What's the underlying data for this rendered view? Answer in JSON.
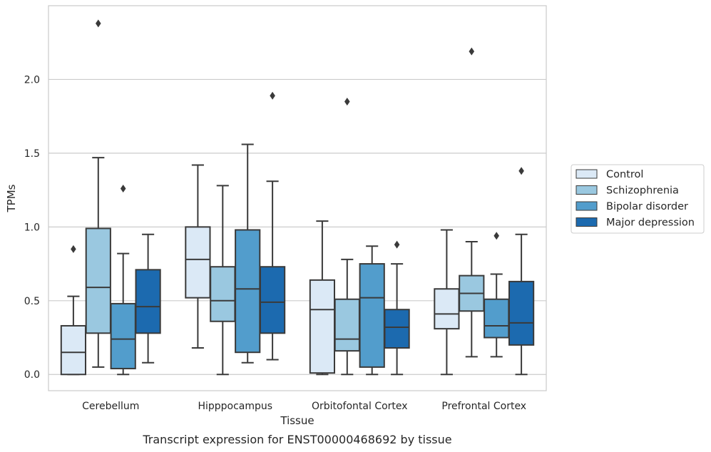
{
  "caption": "Transcript expression for ENST00000468692 by tissue",
  "chart_data": {
    "type": "boxplot",
    "xlabel": "Tissue",
    "ylabel": "TPMs",
    "ylim": [
      -0.11,
      2.5
    ],
    "yticks": [
      0.0,
      0.5,
      1.0,
      1.5,
      2.0
    ],
    "ytick_labels": [
      "0.0",
      "0.5",
      "1.0",
      "1.5",
      "2.0"
    ],
    "grid": "horizontal",
    "legend_position": "right",
    "categories": [
      "Cerebellum",
      "Hipppocampus",
      "Orbitofontal Cortex",
      "Prefrontal Cortex"
    ],
    "series": [
      {
        "name": "Control",
        "color": "#dbe9f6",
        "boxes": [
          {
            "whislo": 0.0,
            "q1": 0.0,
            "med": 0.15,
            "q3": 0.33,
            "whishi": 0.53,
            "fliers": [
              0.85
            ]
          },
          {
            "whislo": 0.18,
            "q1": 0.52,
            "med": 0.78,
            "q3": 1.0,
            "whishi": 1.42,
            "fliers": []
          },
          {
            "whislo": 0.0,
            "q1": 0.01,
            "med": 0.44,
            "q3": 0.64,
            "whishi": 1.04,
            "fliers": []
          },
          {
            "whislo": 0.0,
            "q1": 0.31,
            "med": 0.41,
            "q3": 0.58,
            "whishi": 0.98,
            "fliers": []
          }
        ]
      },
      {
        "name": "Schizophrenia",
        "color": "#9ac8e0",
        "boxes": [
          {
            "whislo": 0.05,
            "q1": 0.28,
            "med": 0.59,
            "q3": 0.99,
            "whishi": 1.47,
            "fliers": [
              2.38
            ]
          },
          {
            "whislo": 0.0,
            "q1": 0.36,
            "med": 0.5,
            "q3": 0.73,
            "whishi": 1.28,
            "fliers": []
          },
          {
            "whislo": 0.0,
            "q1": 0.16,
            "med": 0.24,
            "q3": 0.51,
            "whishi": 0.78,
            "fliers": [
              1.85
            ]
          },
          {
            "whislo": 0.12,
            "q1": 0.43,
            "med": 0.55,
            "q3": 0.67,
            "whishi": 0.9,
            "fliers": [
              2.19
            ]
          }
        ]
      },
      {
        "name": "Bipolar disorder",
        "color": "#529dcc",
        "boxes": [
          {
            "whislo": 0.0,
            "q1": 0.04,
            "med": 0.24,
            "q3": 0.48,
            "whishi": 0.82,
            "fliers": [
              1.26
            ]
          },
          {
            "whislo": 0.08,
            "q1": 0.15,
            "med": 0.58,
            "q3": 0.98,
            "whishi": 1.56,
            "fliers": []
          },
          {
            "whislo": 0.0,
            "q1": 0.05,
            "med": 0.52,
            "q3": 0.75,
            "whishi": 0.87,
            "fliers": []
          },
          {
            "whislo": 0.12,
            "q1": 0.25,
            "med": 0.33,
            "q3": 0.51,
            "whishi": 0.68,
            "fliers": [
              0.94
            ]
          }
        ]
      },
      {
        "name": "Major depression",
        "color": "#1c6aaf",
        "boxes": [
          {
            "whislo": 0.08,
            "q1": 0.28,
            "med": 0.46,
            "q3": 0.71,
            "whishi": 0.95,
            "fliers": []
          },
          {
            "whislo": 0.1,
            "q1": 0.28,
            "med": 0.49,
            "q3": 0.73,
            "whishi": 1.31,
            "fliers": [
              1.89
            ]
          },
          {
            "whislo": 0.0,
            "q1": 0.18,
            "med": 0.32,
            "q3": 0.44,
            "whishi": 0.75,
            "fliers": [
              0.88
            ]
          },
          {
            "whislo": 0.0,
            "q1": 0.2,
            "med": 0.35,
            "q3": 0.63,
            "whishi": 0.95,
            "fliers": [
              1.38
            ]
          }
        ]
      }
    ]
  }
}
